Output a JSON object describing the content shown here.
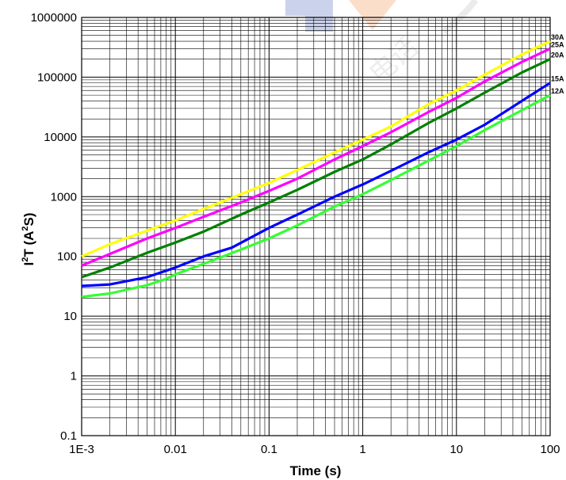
{
  "chart_data": {
    "type": "line",
    "xscale": "log",
    "yscale": "log",
    "xlim": [
      0.001,
      100
    ],
    "ylim": [
      0.1,
      1000000
    ],
    "xlabel": "Time (s)",
    "ylabel_base": "I",
    "ylabel_sup1": "2",
    "ylabel_mid": "T (A",
    "ylabel_sup2": "2",
    "ylabel_end": "S)",
    "grid": true,
    "x_ticks": [
      {
        "value": 0.001,
        "label": "1E-3"
      },
      {
        "value": 0.01,
        "label": "0.01"
      },
      {
        "value": 0.1,
        "label": "0.1"
      },
      {
        "value": 1,
        "label": "1"
      },
      {
        "value": 10,
        "label": "10"
      },
      {
        "value": 100,
        "label": "100"
      }
    ],
    "y_ticks": [
      {
        "value": 0.1,
        "label": "0.1"
      },
      {
        "value": 1,
        "label": "1"
      },
      {
        "value": 10,
        "label": "10"
      },
      {
        "value": 100,
        "label": "100"
      },
      {
        "value": 1000,
        "label": "1000"
      },
      {
        "value": 10000,
        "label": "10000"
      },
      {
        "value": 100000,
        "label": "100000"
      },
      {
        "value": 1000000,
        "label": "1000000"
      }
    ],
    "series": [
      {
        "name": "30A",
        "color": "#ffff00",
        "points": [
          [
            0.001,
            100
          ],
          [
            0.002,
            160
          ],
          [
            0.005,
            270
          ],
          [
            0.01,
            400
          ],
          [
            0.02,
            620
          ],
          [
            0.05,
            1100
          ],
          [
            0.1,
            1700
          ],
          [
            0.2,
            2800
          ],
          [
            0.5,
            5500
          ],
          [
            1,
            9000
          ],
          [
            2,
            15000
          ],
          [
            5,
            35000
          ],
          [
            10,
            60000
          ],
          [
            20,
            110000
          ],
          [
            50,
            240000
          ],
          [
            100,
            400000
          ]
        ]
      },
      {
        "name": "25A",
        "color": "#ff00ff",
        "points": [
          [
            0.001,
            70
          ],
          [
            0.002,
            110
          ],
          [
            0.005,
            200
          ],
          [
            0.01,
            300
          ],
          [
            0.02,
            460
          ],
          [
            0.05,
            800
          ],
          [
            0.1,
            1250
          ],
          [
            0.2,
            2000
          ],
          [
            0.5,
            4200
          ],
          [
            1,
            7000
          ],
          [
            2,
            12000
          ],
          [
            5,
            26000
          ],
          [
            10,
            45000
          ],
          [
            20,
            85000
          ],
          [
            50,
            180000
          ],
          [
            100,
            300000
          ]
        ]
      },
      {
        "name": "20A",
        "color": "#008000",
        "points": [
          [
            0.001,
            45
          ],
          [
            0.002,
            65
          ],
          [
            0.005,
            115
          ],
          [
            0.01,
            170
          ],
          [
            0.02,
            260
          ],
          [
            0.05,
            500
          ],
          [
            0.1,
            800
          ],
          [
            0.2,
            1300
          ],
          [
            0.5,
            2600
          ],
          [
            1,
            4200
          ],
          [
            2,
            7500
          ],
          [
            5,
            17000
          ],
          [
            10,
            30000
          ],
          [
            20,
            55000
          ],
          [
            50,
            120000
          ],
          [
            100,
            200000
          ]
        ]
      },
      {
        "name": "15A",
        "color": "#0000ff",
        "points": [
          [
            0.001,
            32
          ],
          [
            0.002,
            34
          ],
          [
            0.005,
            45
          ],
          [
            0.01,
            65
          ],
          [
            0.02,
            100
          ],
          [
            0.04,
            140
          ],
          [
            0.1,
            300
          ],
          [
            0.2,
            500
          ],
          [
            0.5,
            1000
          ],
          [
            1,
            1600
          ],
          [
            2,
            2700
          ],
          [
            5,
            5500
          ],
          [
            10,
            9000
          ],
          [
            20,
            16000
          ],
          [
            50,
            40000
          ],
          [
            100,
            80000
          ]
        ]
      },
      {
        "name": "12A",
        "color": "#33ff33",
        "points": [
          [
            0.001,
            21
          ],
          [
            0.002,
            24
          ],
          [
            0.005,
            33
          ],
          [
            0.008,
            42
          ],
          [
            0.01,
            50
          ],
          [
            0.02,
            75
          ],
          [
            0.05,
            130
          ],
          [
            0.1,
            200
          ],
          [
            0.2,
            330
          ],
          [
            0.5,
            680
          ],
          [
            1,
            1100
          ],
          [
            2,
            1900
          ],
          [
            5,
            4000
          ],
          [
            10,
            7000
          ],
          [
            20,
            13000
          ],
          [
            50,
            28000
          ],
          [
            100,
            50000
          ]
        ]
      }
    ]
  }
}
